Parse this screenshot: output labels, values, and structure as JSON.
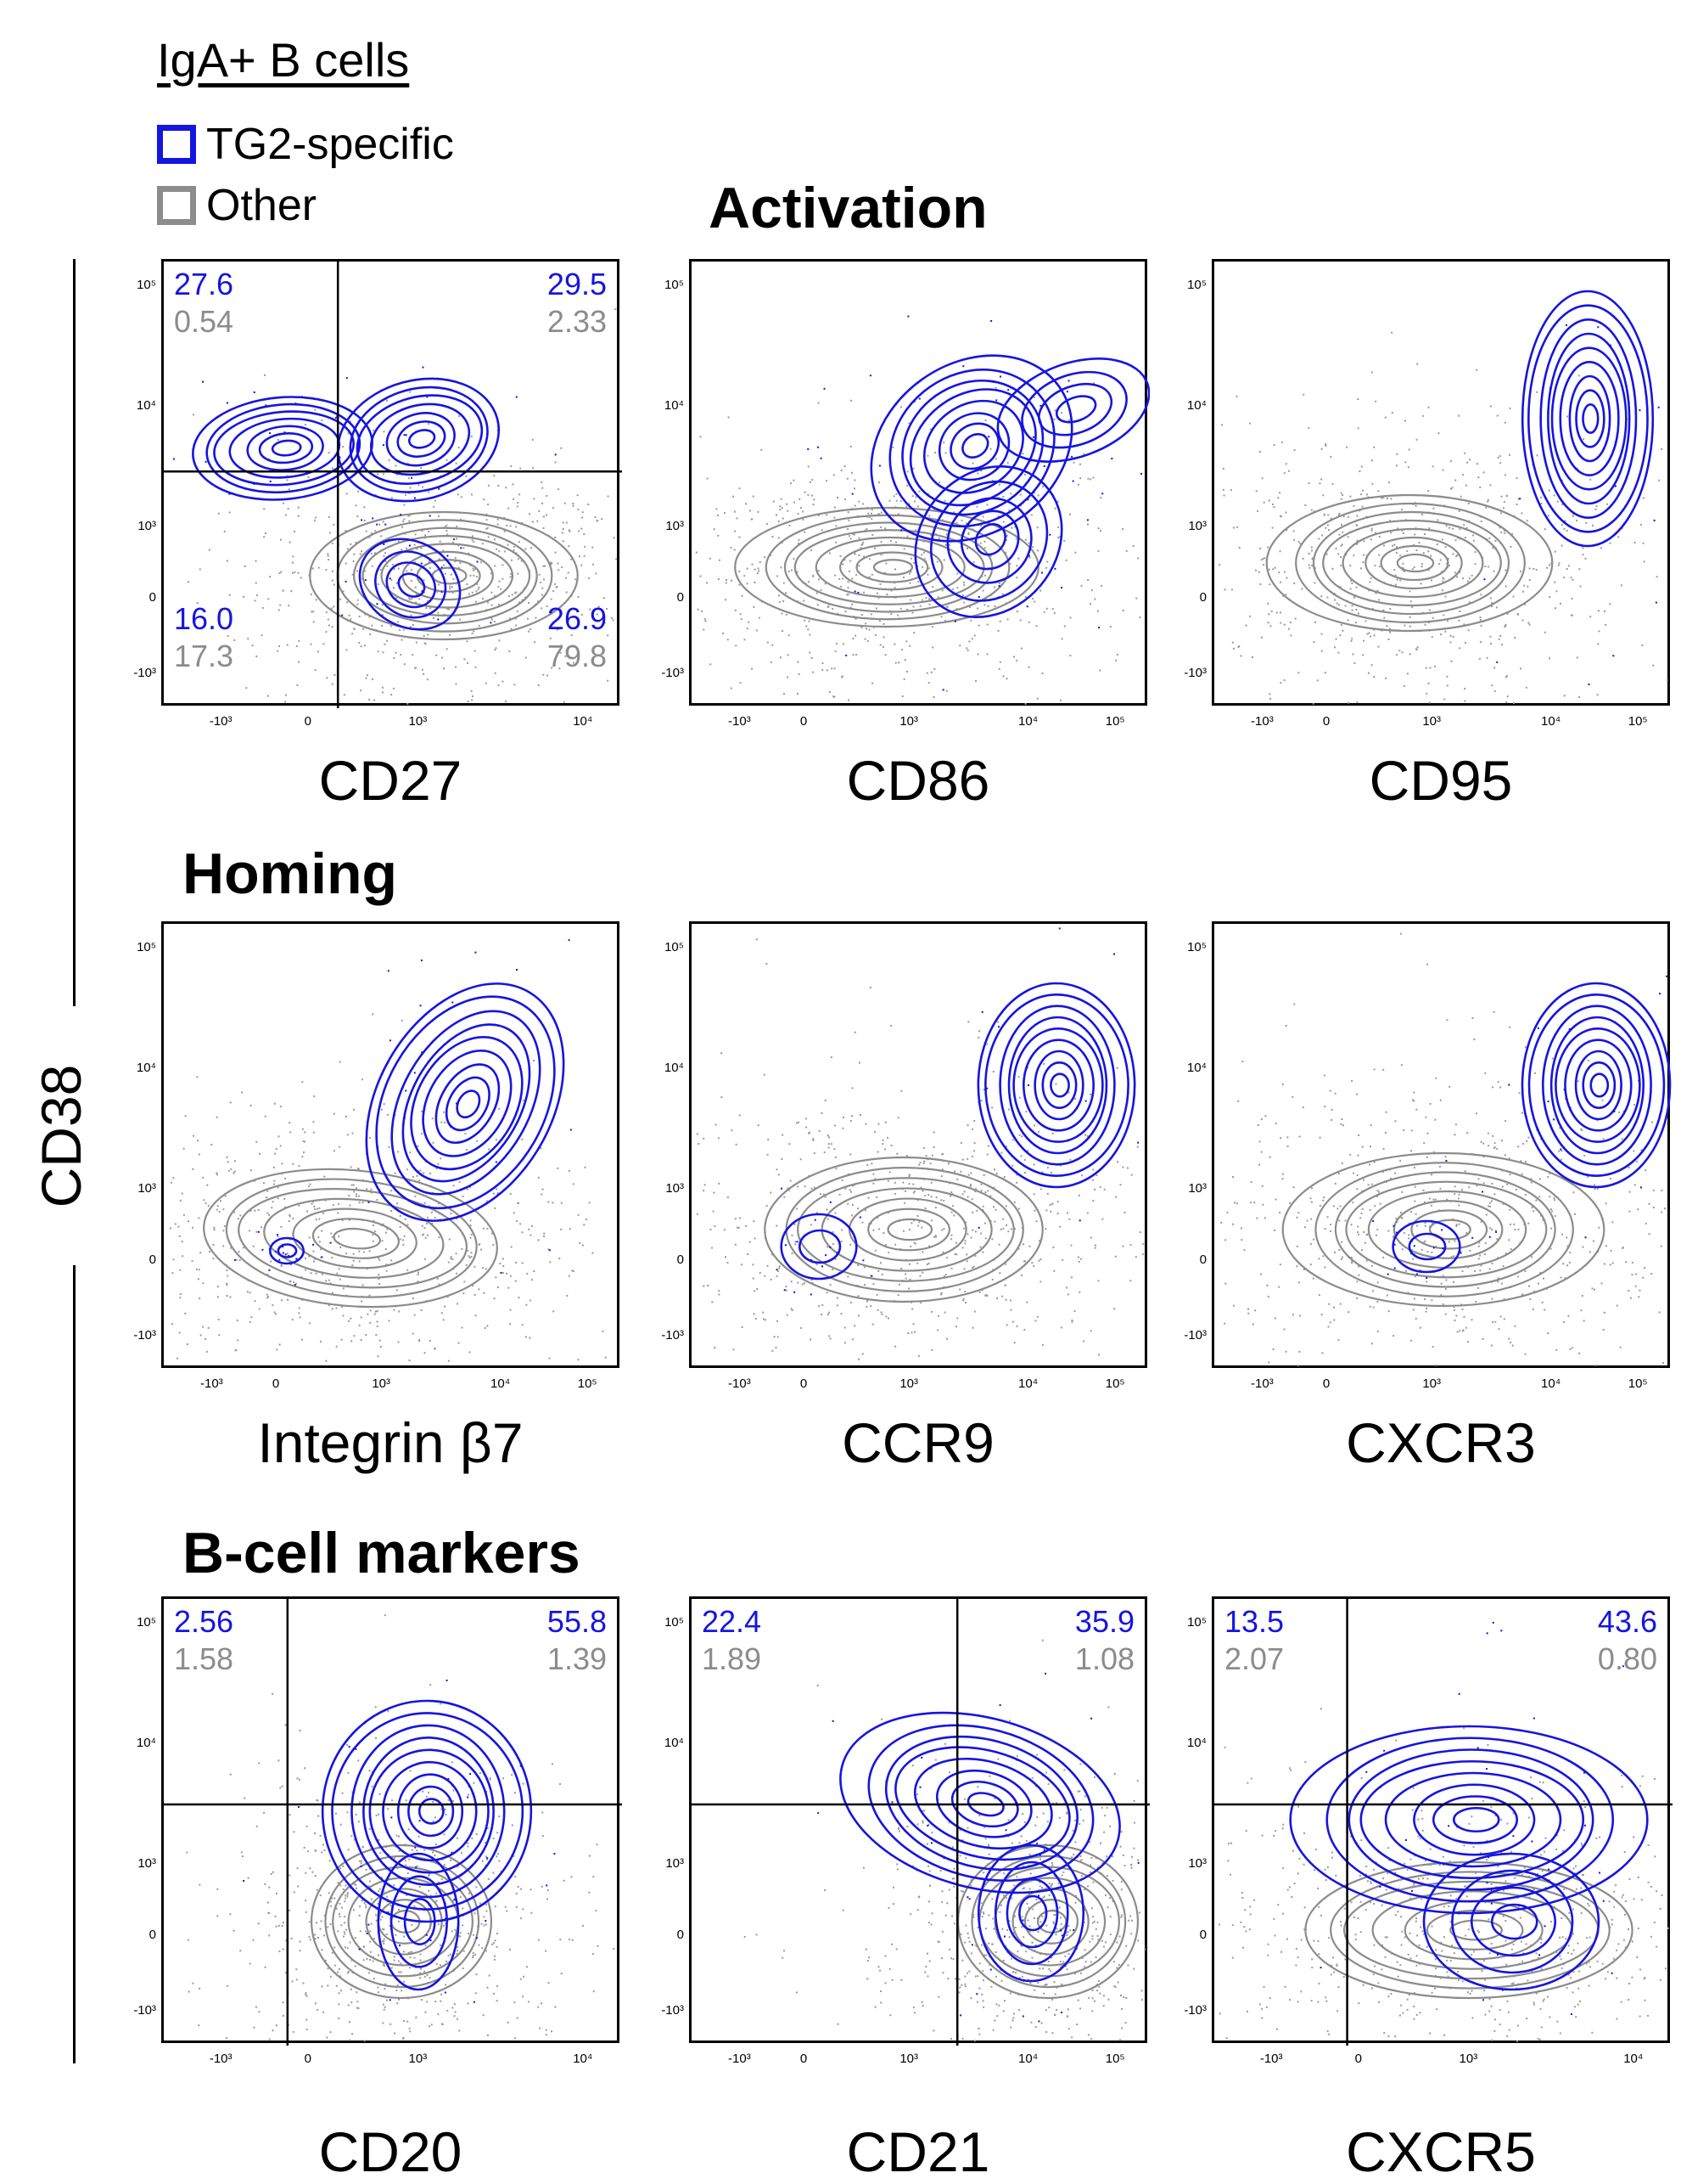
{
  "legend": {
    "title": "IgA+ B cells",
    "items": [
      {
        "label": "TG2-specific",
        "color": "#1515e0"
      },
      {
        "label": "Other",
        "color": "#8c8c8c"
      }
    ]
  },
  "sections": {
    "activation": "Activation",
    "homing": "Homing",
    "bcell": "B-cell markers"
  },
  "y_axis_label": "CD38",
  "colors": {
    "tg2": "#1515e0",
    "other": "#8c8c8c",
    "axis": "#000000"
  },
  "chart_data": [
    {
      "type": "scatter",
      "subtype": "contour",
      "xlabel": "CD27",
      "ylabel": "CD38",
      "x_scale": "biexponential",
      "y_scale": "biexponential",
      "x_ticks": [
        "-10³",
        "0",
        "10³",
        "10⁴"
      ],
      "y_ticks": [
        "10⁵",
        "10⁴",
        "10³",
        "0",
        "-10³"
      ],
      "quadrants": {
        "top_left": {
          "tg2": "27.6",
          "other": "0.54"
        },
        "top_right": {
          "tg2": "29.5",
          "other": "2.33"
        },
        "bottom_left": {
          "tg2": "16.0",
          "other": "17.3"
        },
        "bottom_right": {
          "tg2": "26.9",
          "other": "79.8"
        }
      },
      "series": [
        {
          "name": "TG2-specific",
          "centers": [
            [
              500,
              5000
            ],
            [
              1800,
              5200
            ],
            [
              2500,
              600
            ]
          ]
        },
        {
          "name": "Other",
          "centers": [
            [
              1200,
              300
            ]
          ]
        }
      ]
    },
    {
      "type": "scatter",
      "subtype": "contour",
      "xlabel": "CD86",
      "ylabel": "CD38",
      "x_scale": "biexponential",
      "y_scale": "biexponential",
      "x_ticks": [
        "-10³",
        "0",
        "10³",
        "10⁴",
        "10⁵"
      ],
      "y_ticks": [
        "10⁵",
        "10⁴",
        "10³",
        "0",
        "-10³"
      ],
      "series": [
        {
          "name": "TG2-specific",
          "centers": [
            [
              3500,
              5000
            ],
            [
              15000,
              9000
            ]
          ]
        },
        {
          "name": "Other",
          "centers": [
            [
              800,
              300
            ]
          ]
        }
      ]
    },
    {
      "type": "scatter",
      "subtype": "contour",
      "xlabel": "CD95",
      "ylabel": "CD38",
      "x_scale": "biexponential",
      "y_scale": "biexponential",
      "x_ticks": [
        "-10³",
        "0",
        "10³",
        "10⁴",
        "10⁵"
      ],
      "y_ticks": [
        "10⁵",
        "10⁴",
        "10³",
        "0",
        "-10³"
      ],
      "series": [
        {
          "name": "TG2-specific",
          "centers": [
            [
              12000,
              5000
            ]
          ]
        },
        {
          "name": "Other",
          "centers": [
            [
              500,
              500
            ]
          ]
        }
      ]
    },
    {
      "type": "scatter",
      "subtype": "contour",
      "xlabel": "Integrin β7",
      "ylabel": "CD38",
      "x_scale": "biexponential",
      "y_scale": "biexponential",
      "x_ticks": [
        "-10³",
        "0",
        "10³",
        "10⁴",
        "10⁵"
      ],
      "y_ticks": [
        "10⁵",
        "10⁴",
        "10³",
        "0",
        "-10³"
      ],
      "series": [
        {
          "name": "TG2-specific",
          "centers": [
            [
              9000,
              5000
            ]
          ]
        },
        {
          "name": "Other",
          "centers": [
            [
              -100,
              300
            ],
            [
              2000,
              600
            ]
          ]
        }
      ]
    },
    {
      "type": "scatter",
      "subtype": "contour",
      "xlabel": "CCR9",
      "ylabel": "CD38",
      "x_scale": "biexponential",
      "y_scale": "biexponential",
      "x_ticks": [
        "-10³",
        "0",
        "10³",
        "10⁴",
        "10⁵"
      ],
      "y_ticks": [
        "10⁵",
        "10⁴",
        "10³",
        "0",
        "-10³"
      ],
      "series": [
        {
          "name": "TG2-specific",
          "centers": [
            [
              12000,
              5000
            ],
            [
              200,
              300
            ]
          ]
        },
        {
          "name": "Other",
          "centers": [
            [
              200,
              300
            ]
          ]
        }
      ]
    },
    {
      "type": "scatter",
      "subtype": "contour",
      "xlabel": "CXCR3",
      "ylabel": "CD38",
      "x_scale": "biexponential",
      "y_scale": "biexponential",
      "x_ticks": [
        "-10³",
        "0",
        "10³",
        "10⁴",
        "10⁵"
      ],
      "y_ticks": [
        "10⁵",
        "10⁴",
        "10³",
        "0",
        "-10³"
      ],
      "series": [
        {
          "name": "TG2-specific",
          "centers": [
            [
              18000,
              5000
            ],
            [
              300,
              300
            ]
          ]
        },
        {
          "name": "Other",
          "centers": [
            [
              500,
              400
            ]
          ]
        }
      ]
    },
    {
      "type": "scatter",
      "subtype": "contour",
      "xlabel": "CD20",
      "ylabel": "CD38",
      "x_scale": "biexponential",
      "y_scale": "biexponential",
      "x_ticks": [
        "-10³",
        "0",
        "10³",
        "10⁴"
      ],
      "y_ticks": [
        "10⁵",
        "10⁴",
        "10³",
        "0",
        "-10³"
      ],
      "quadrants": {
        "top_left": {
          "tg2": "2.56",
          "other": "1.58"
        },
        "top_right": {
          "tg2": "55.8",
          "other": "1.39"
        }
      },
      "series": [
        {
          "name": "TG2-specific",
          "centers": [
            [
              1500,
              5000
            ]
          ]
        },
        {
          "name": "Other",
          "centers": [
            [
              700,
              400
            ]
          ]
        }
      ]
    },
    {
      "type": "scatter",
      "subtype": "contour",
      "xlabel": "CD21",
      "ylabel": "CD38",
      "x_scale": "biexponential",
      "y_scale": "biexponential",
      "x_ticks": [
        "-10³",
        "0",
        "10³",
        "10⁴",
        "10⁵"
      ],
      "y_ticks": [
        "10⁵",
        "10⁴",
        "10³",
        "0",
        "-10³"
      ],
      "quadrants": {
        "top_left": {
          "tg2": "22.4",
          "other": "1.89"
        },
        "top_right": {
          "tg2": "35.9",
          "other": "1.08"
        }
      },
      "series": [
        {
          "name": "TG2-specific",
          "centers": [
            [
              8000,
              5000
            ],
            [
              15000,
              600
            ]
          ]
        },
        {
          "name": "Other",
          "centers": [
            [
              20000,
              400
            ]
          ]
        }
      ]
    },
    {
      "type": "scatter",
      "subtype": "contour",
      "xlabel": "CXCR5",
      "ylabel": "CD38",
      "x_scale": "biexponential",
      "y_scale": "biexponential",
      "x_ticks": [
        "-10³",
        "0",
        "10³",
        "10⁴"
      ],
      "y_ticks": [
        "10⁵",
        "10⁴",
        "10³",
        "0",
        "-10³"
      ],
      "quadrants": {
        "top_left": {
          "tg2": "13.5",
          "other": "2.07"
        },
        "top_right": {
          "tg2": "43.6",
          "other": "0.80"
        }
      },
      "series": [
        {
          "name": "TG2-specific",
          "centers": [
            [
              2000,
              5000
            ]
          ]
        },
        {
          "name": "Other",
          "centers": [
            [
              1500,
              400
            ]
          ]
        }
      ]
    }
  ]
}
